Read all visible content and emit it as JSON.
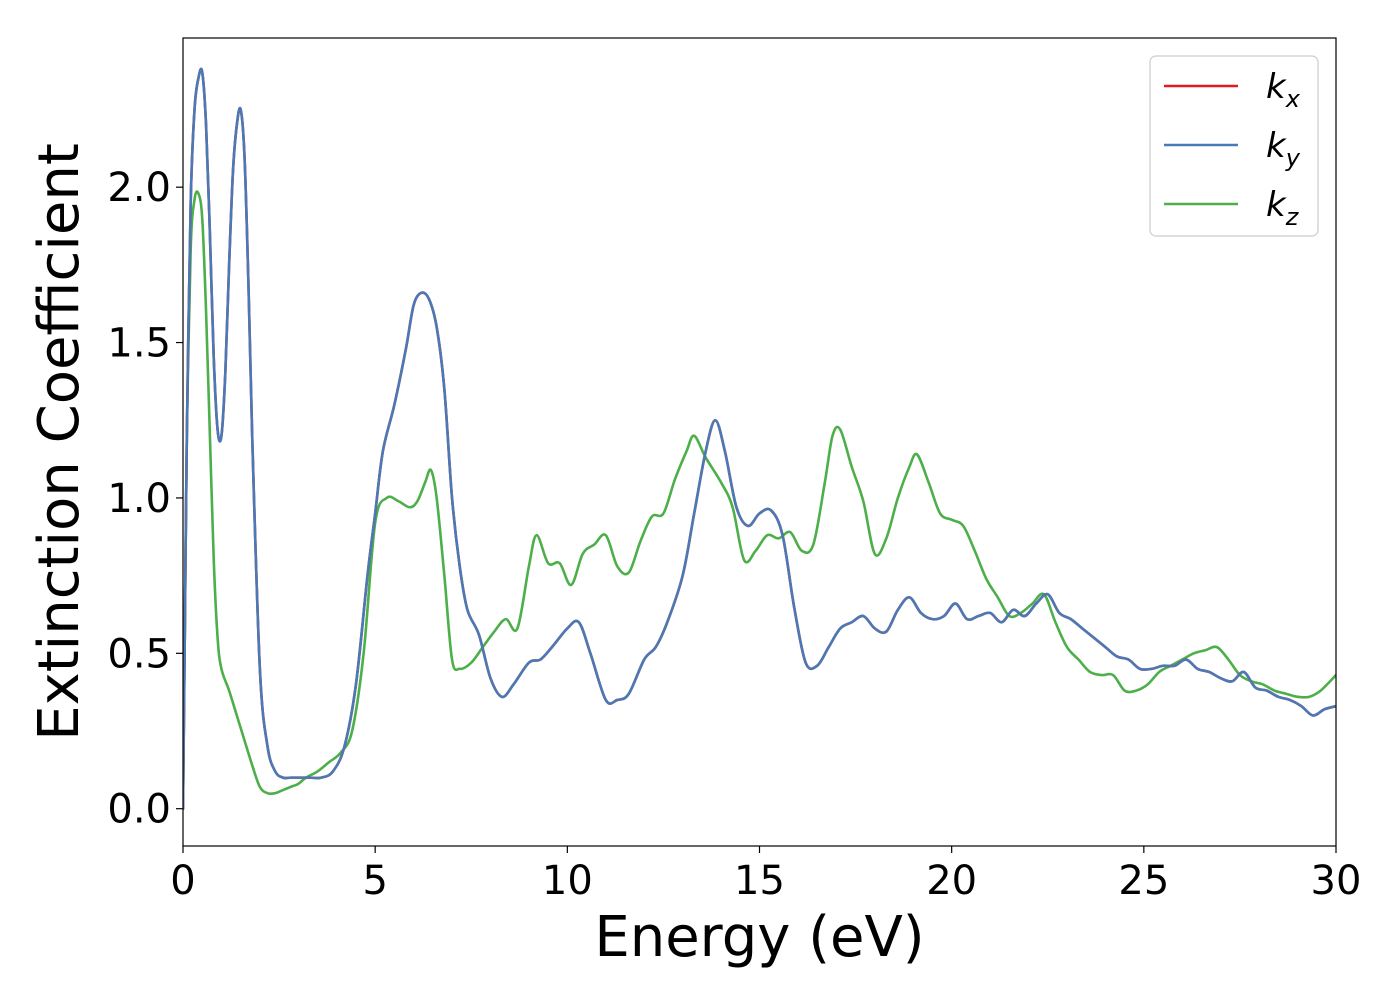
{
  "chart_data": {
    "type": "line",
    "title": "",
    "xlabel": "Energy (eV)",
    "ylabel": "Extinction Coefficient",
    "xlim": [
      0,
      30
    ],
    "ylim": [
      -0.12,
      2.48
    ],
    "xticks": [
      0,
      5,
      10,
      15,
      20,
      25,
      30
    ],
    "xtick_labels": [
      "0",
      "5",
      "10",
      "15",
      "20",
      "25",
      "30"
    ],
    "yticks": [
      0.0,
      0.5,
      1.0,
      1.5,
      2.0
    ],
    "ytick_labels": [
      "0.0",
      "0.5",
      "1.0",
      "1.5",
      "2.0"
    ],
    "grid": false,
    "legend_position": "top-right",
    "series": [
      {
        "name": "kx",
        "base": "k",
        "sub": "x",
        "color": "#e41a1c",
        "x": [
          0,
          0.05,
          0.1,
          0.2,
          0.3,
          0.4,
          0.5,
          0.6,
          0.7,
          0.8,
          0.9,
          1.0,
          1.1,
          1.2,
          1.3,
          1.4,
          1.5,
          1.6,
          1.7,
          1.8,
          2.0,
          2.2,
          2.4,
          2.6,
          2.8,
          3.0,
          3.3,
          3.6,
          3.9,
          4.2,
          4.5,
          4.8,
          5.0,
          5.2,
          5.5,
          5.8,
          6.0,
          6.2,
          6.4,
          6.6,
          6.8,
          7.0,
          7.2,
          7.4,
          7.7,
          8.0,
          8.3,
          8.6,
          9.0,
          9.3,
          9.6,
          10.0,
          10.3,
          10.6,
          11.0,
          11.3,
          11.6,
          12.0,
          12.3,
          12.6,
          13.0,
          13.3,
          13.6,
          13.85,
          14.1,
          14.4,
          14.7,
          15.0,
          15.3,
          15.6,
          15.9,
          16.2,
          16.5,
          16.8,
          17.1,
          17.4,
          17.7,
          18.0,
          18.3,
          18.6,
          18.9,
          19.2,
          19.5,
          19.8,
          20.1,
          20.4,
          20.7,
          21.0,
          21.3,
          21.6,
          21.9,
          22.2,
          22.5,
          22.8,
          23.1,
          23.4,
          23.7,
          24.0,
          24.3,
          24.6,
          24.9,
          25.2,
          25.5,
          25.8,
          26.1,
          26.4,
          26.7,
          27.0,
          27.3,
          27.6,
          27.9,
          28.2,
          28.5,
          28.8,
          29.1,
          29.4,
          29.7,
          30.0
        ],
        "y": [
          0.0,
          0.6,
          1.2,
          1.95,
          2.25,
          2.35,
          2.37,
          2.2,
          1.85,
          1.45,
          1.22,
          1.2,
          1.4,
          1.75,
          2.05,
          2.2,
          2.25,
          2.1,
          1.7,
          1.2,
          0.45,
          0.2,
          0.12,
          0.1,
          0.1,
          0.1,
          0.1,
          0.1,
          0.12,
          0.2,
          0.4,
          0.75,
          0.95,
          1.15,
          1.3,
          1.48,
          1.62,
          1.66,
          1.64,
          1.55,
          1.35,
          1.0,
          0.78,
          0.64,
          0.56,
          0.42,
          0.36,
          0.4,
          0.47,
          0.48,
          0.52,
          0.58,
          0.6,
          0.5,
          0.35,
          0.35,
          0.37,
          0.48,
          0.52,
          0.6,
          0.75,
          0.95,
          1.15,
          1.25,
          1.15,
          0.97,
          0.91,
          0.95,
          0.96,
          0.88,
          0.65,
          0.47,
          0.46,
          0.52,
          0.58,
          0.6,
          0.62,
          0.58,
          0.57,
          0.64,
          0.68,
          0.63,
          0.61,
          0.62,
          0.66,
          0.61,
          0.62,
          0.63,
          0.6,
          0.64,
          0.62,
          0.66,
          0.69,
          0.63,
          0.61,
          0.58,
          0.55,
          0.52,
          0.49,
          0.48,
          0.45,
          0.45,
          0.46,
          0.46,
          0.48,
          0.45,
          0.44,
          0.42,
          0.41,
          0.44,
          0.39,
          0.38,
          0.36,
          0.35,
          0.33,
          0.3,
          0.32,
          0.33
        ]
      },
      {
        "name": "ky",
        "base": "k",
        "sub": "y",
        "color": "#4a7ab5",
        "x": [
          0,
          0.05,
          0.1,
          0.2,
          0.3,
          0.4,
          0.5,
          0.6,
          0.7,
          0.8,
          0.9,
          1.0,
          1.1,
          1.2,
          1.3,
          1.4,
          1.5,
          1.6,
          1.7,
          1.8,
          2.0,
          2.2,
          2.4,
          2.6,
          2.8,
          3.0,
          3.3,
          3.6,
          3.9,
          4.2,
          4.5,
          4.8,
          5.0,
          5.2,
          5.5,
          5.8,
          6.0,
          6.2,
          6.4,
          6.6,
          6.8,
          7.0,
          7.2,
          7.4,
          7.7,
          8.0,
          8.3,
          8.6,
          9.0,
          9.3,
          9.6,
          10.0,
          10.3,
          10.6,
          11.0,
          11.3,
          11.6,
          12.0,
          12.3,
          12.6,
          13.0,
          13.3,
          13.6,
          13.85,
          14.1,
          14.4,
          14.7,
          15.0,
          15.3,
          15.6,
          15.9,
          16.2,
          16.5,
          16.8,
          17.1,
          17.4,
          17.7,
          18.0,
          18.3,
          18.6,
          18.9,
          19.2,
          19.5,
          19.8,
          20.1,
          20.4,
          20.7,
          21.0,
          21.3,
          21.6,
          21.9,
          22.2,
          22.5,
          22.8,
          23.1,
          23.4,
          23.7,
          24.0,
          24.3,
          24.6,
          24.9,
          25.2,
          25.5,
          25.8,
          26.1,
          26.4,
          26.7,
          27.0,
          27.3,
          27.6,
          27.9,
          28.2,
          28.5,
          28.8,
          29.1,
          29.4,
          29.7,
          30.0
        ],
        "y": [
          0.0,
          0.6,
          1.2,
          1.95,
          2.25,
          2.35,
          2.37,
          2.2,
          1.85,
          1.45,
          1.22,
          1.2,
          1.4,
          1.75,
          2.05,
          2.2,
          2.25,
          2.1,
          1.7,
          1.2,
          0.45,
          0.2,
          0.12,
          0.1,
          0.1,
          0.1,
          0.1,
          0.1,
          0.12,
          0.2,
          0.4,
          0.75,
          0.95,
          1.15,
          1.3,
          1.48,
          1.62,
          1.66,
          1.64,
          1.55,
          1.35,
          1.0,
          0.78,
          0.64,
          0.56,
          0.42,
          0.36,
          0.4,
          0.47,
          0.48,
          0.52,
          0.58,
          0.6,
          0.5,
          0.35,
          0.35,
          0.37,
          0.48,
          0.52,
          0.6,
          0.75,
          0.95,
          1.15,
          1.25,
          1.15,
          0.97,
          0.91,
          0.95,
          0.96,
          0.88,
          0.65,
          0.47,
          0.46,
          0.52,
          0.58,
          0.6,
          0.62,
          0.58,
          0.57,
          0.64,
          0.68,
          0.63,
          0.61,
          0.62,
          0.66,
          0.61,
          0.62,
          0.63,
          0.6,
          0.64,
          0.62,
          0.66,
          0.69,
          0.63,
          0.61,
          0.58,
          0.55,
          0.52,
          0.49,
          0.48,
          0.45,
          0.45,
          0.46,
          0.46,
          0.48,
          0.45,
          0.44,
          0.42,
          0.41,
          0.44,
          0.39,
          0.38,
          0.36,
          0.35,
          0.33,
          0.3,
          0.32,
          0.33
        ]
      },
      {
        "name": "kz",
        "base": "k",
        "sub": "z",
        "color": "#4daf4a",
        "x": [
          0,
          0.05,
          0.1,
          0.2,
          0.3,
          0.4,
          0.5,
          0.6,
          0.7,
          0.8,
          0.9,
          1.0,
          1.2,
          1.4,
          1.6,
          1.8,
          2.0,
          2.2,
          2.4,
          2.6,
          2.8,
          3.0,
          3.2,
          3.5,
          3.8,
          4.1,
          4.4,
          4.7,
          5.0,
          5.3,
          5.6,
          5.9,
          6.1,
          6.3,
          6.45,
          6.6,
          6.8,
          7.0,
          7.2,
          7.5,
          7.8,
          8.1,
          8.4,
          8.7,
          9.0,
          9.2,
          9.5,
          9.8,
          10.1,
          10.4,
          10.7,
          11.0,
          11.3,
          11.6,
          11.9,
          12.2,
          12.5,
          12.8,
          13.1,
          13.3,
          13.6,
          14.0,
          14.3,
          14.6,
          14.9,
          15.2,
          15.5,
          15.8,
          16.1,
          16.4,
          16.7,
          16.9,
          17.1,
          17.4,
          17.7,
          18.0,
          18.3,
          18.6,
          18.9,
          19.1,
          19.4,
          19.7,
          20.0,
          20.3,
          20.6,
          20.9,
          21.2,
          21.5,
          21.8,
          22.1,
          22.4,
          22.7,
          23.0,
          23.3,
          23.6,
          23.9,
          24.2,
          24.5,
          24.8,
          25.1,
          25.4,
          25.7,
          26.0,
          26.3,
          26.6,
          26.9,
          27.2,
          27.5,
          27.8,
          28.1,
          28.4,
          28.7,
          29.0,
          29.3,
          29.6,
          30.0
        ],
        "y": [
          0.0,
          0.6,
          1.2,
          1.8,
          1.96,
          1.98,
          1.9,
          1.6,
          1.2,
          0.8,
          0.55,
          0.45,
          0.38,
          0.3,
          0.22,
          0.14,
          0.07,
          0.05,
          0.05,
          0.06,
          0.07,
          0.08,
          0.1,
          0.12,
          0.15,
          0.18,
          0.25,
          0.5,
          0.92,
          1.0,
          0.99,
          0.97,
          0.99,
          1.05,
          1.09,
          1.0,
          0.75,
          0.48,
          0.45,
          0.47,
          0.52,
          0.57,
          0.61,
          0.58,
          0.78,
          0.88,
          0.79,
          0.79,
          0.72,
          0.82,
          0.85,
          0.88,
          0.78,
          0.76,
          0.86,
          0.94,
          0.95,
          1.06,
          1.15,
          1.2,
          1.13,
          1.05,
          0.97,
          0.8,
          0.83,
          0.88,
          0.87,
          0.89,
          0.83,
          0.85,
          1.05,
          1.2,
          1.22,
          1.1,
          0.99,
          0.82,
          0.87,
          1.0,
          1.1,
          1.14,
          1.05,
          0.95,
          0.93,
          0.91,
          0.83,
          0.74,
          0.68,
          0.62,
          0.63,
          0.66,
          0.69,
          0.6,
          0.52,
          0.48,
          0.44,
          0.43,
          0.43,
          0.38,
          0.38,
          0.4,
          0.44,
          0.46,
          0.48,
          0.5,
          0.51,
          0.52,
          0.48,
          0.43,
          0.41,
          0.4,
          0.38,
          0.37,
          0.36,
          0.36,
          0.38,
          0.43
        ]
      }
    ]
  }
}
